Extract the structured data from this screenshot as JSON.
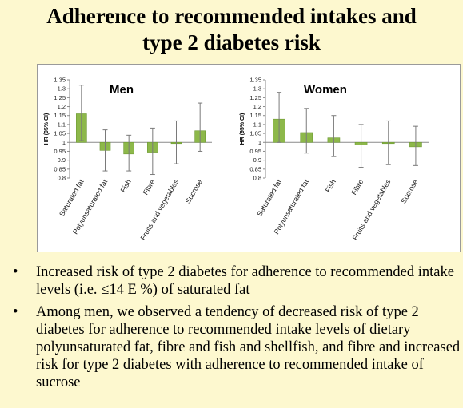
{
  "page": {
    "title_line1": "Adherence to recommended intakes and",
    "title_line2": "type 2 diabetes risk"
  },
  "colors": {
    "bar": "#8db84a",
    "bar_stroke": "#6e9a34",
    "error": "#7a7a7a",
    "background": "#fdf8cf"
  },
  "chart_data": [
    {
      "type": "bar",
      "title": "Men",
      "ylabel": "HR (95% CI)",
      "ylim": [
        0.8,
        1.35
      ],
      "yticks": [
        "0.8",
        "0.85",
        "0.9",
        "0.95",
        "1",
        "1.05",
        "1.1",
        "1.15",
        "1.2",
        "1.25",
        "1.3",
        "1.35"
      ],
      "baseline": 1,
      "categories": [
        "Saturated fat",
        "Polyunsaturated fat",
        "Fish",
        "Fibre",
        "Fruits and vegetables",
        "Sucrose"
      ],
      "values": [
        1.16,
        0.955,
        0.935,
        0.945,
        0.995,
        1.065
      ],
      "ci_low": [
        1.01,
        0.84,
        0.84,
        0.82,
        0.88,
        0.95
      ],
      "ci_high": [
        1.32,
        1.07,
        1.04,
        1.08,
        1.12,
        1.22
      ]
    },
    {
      "type": "bar",
      "title": "Women",
      "ylabel": "HR (95% CI)",
      "ylim": [
        0.8,
        1.35
      ],
      "yticks": [
        "0.8",
        "0.85",
        "0.9",
        "0.95",
        "1",
        "1.05",
        "1.1",
        "1.15",
        "1.2",
        "1.25",
        "1.3",
        "1.35"
      ],
      "baseline": 1,
      "categories": [
        "Saturated fat",
        "Polyunsaturated fat",
        "Fish",
        "Fibre",
        "Fruits and vegetables",
        "Sucrose"
      ],
      "values": [
        1.13,
        1.055,
        1.025,
        0.985,
        0.995,
        0.975
      ],
      "ci_low": [
        1.0,
        0.94,
        0.92,
        0.86,
        0.875,
        0.87
      ],
      "ci_high": [
        1.28,
        1.19,
        1.15,
        1.1,
        1.12,
        1.09
      ]
    }
  ],
  "bullets": [
    "Increased risk of type 2 diabetes for adherence to recommended intake levels (i.e. ≤14 E %) of saturated fat",
    "Among men, we observed a tendency of decreased risk of type 2 diabetes for adherence to recommended intake levels of dietary polyunsaturated fat, fibre and fish and shellfish, and fibre and increased risk for type 2 diabetes with adherence to recommended intake of sucrose"
  ],
  "bullet_symbol": "•"
}
